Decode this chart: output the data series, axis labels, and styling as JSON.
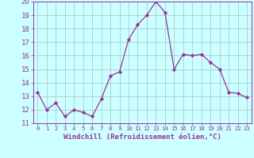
{
  "x": [
    0,
    1,
    2,
    3,
    4,
    5,
    6,
    7,
    8,
    9,
    10,
    11,
    12,
    13,
    14,
    15,
    16,
    17,
    18,
    19,
    20,
    21,
    22,
    23
  ],
  "y": [
    13.3,
    12.0,
    12.5,
    11.5,
    12.0,
    11.8,
    11.5,
    12.8,
    14.5,
    14.8,
    17.2,
    18.3,
    19.0,
    20.0,
    19.2,
    15.0,
    16.1,
    16.0,
    16.1,
    15.5,
    15.0,
    13.3,
    13.2,
    12.9
  ],
  "line_color": "#993399",
  "marker": "D",
  "marker_size": 2.2,
  "bg_color": "#ccffff",
  "grid_color": "#aacccc",
  "xlabel": "Windchill (Refroidissement éolien,°C)",
  "xlim": [
    -0.5,
    23.5
  ],
  "ylim": [
    11,
    20
  ],
  "yticks": [
    11,
    12,
    13,
    14,
    15,
    16,
    17,
    18,
    19,
    20
  ],
  "xticks": [
    0,
    1,
    2,
    3,
    4,
    5,
    6,
    7,
    8,
    9,
    10,
    11,
    12,
    13,
    14,
    15,
    16,
    17,
    18,
    19,
    20,
    21,
    22,
    23
  ],
  "xlabel_fontsize": 6.5,
  "ytick_fontsize": 6.5,
  "xtick_fontsize": 5.2,
  "tick_color": "#993399",
  "axis_color": "#993399",
  "label_fontfamily": "monospace"
}
